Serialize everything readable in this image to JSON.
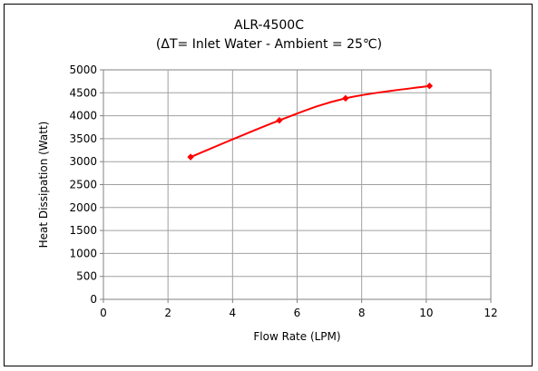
{
  "chart_data": {
    "type": "line",
    "title": "ALR-4500C",
    "subtitle": "(ΔT= Inlet Water - Ambient = 25℃)",
    "xlabel": "Flow Rate (LPM)",
    "ylabel": "Heat Dissipation (Watt)",
    "xlim": [
      0,
      12
    ],
    "ylim": [
      0,
      5000
    ],
    "xticks": [
      0,
      2,
      4,
      6,
      8,
      10,
      12
    ],
    "yticks": [
      0,
      500,
      1000,
      1500,
      2000,
      2500,
      3000,
      3500,
      4000,
      4500,
      5000
    ],
    "grid": true,
    "series": [
      {
        "color": "#ff0000",
        "x": [
          2.7,
          5.45,
          7.5,
          10.1
        ],
        "y": [
          3100,
          3900,
          4380,
          4650
        ]
      }
    ]
  }
}
